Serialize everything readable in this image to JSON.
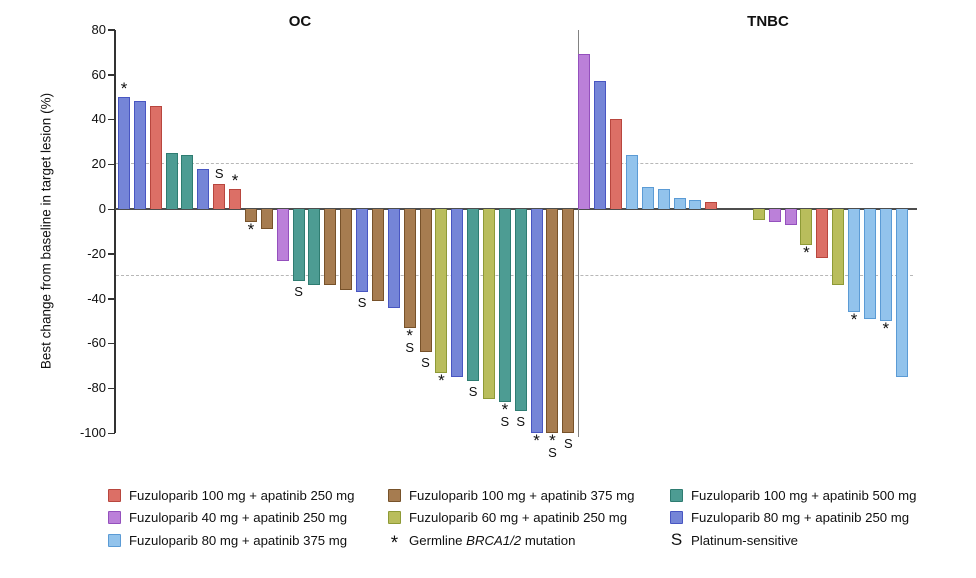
{
  "y_axis_title": "Best change from baseline in target lesion (%)",
  "colors": {
    "f100a250": {
      "fill": "#dc6f66",
      "border": "#b8463e",
      "label": "Fuzuloparib 100 mg + apatinib 250 mg"
    },
    "f40a250": {
      "fill": "#bb80d9",
      "border": "#9450bd",
      "label": "Fuzuloparib 40 mg + apatinib 250 mg"
    },
    "f80a375": {
      "fill": "#92c3ec",
      "border": "#5b9bd5",
      "label": "Fuzuloparib 80 mg + apatinib 375 mg"
    },
    "f100a375": {
      "fill": "#a67c50",
      "border": "#77522a",
      "label": "Fuzuloparib 100 mg + apatinib 375 mg"
    },
    "f60a250": {
      "fill": "#b9bd5c",
      "border": "#8e9a36",
      "label": "Fuzuloparib 60 mg + apatinib 250 mg"
    },
    "f100a500": {
      "fill": "#4d9c93",
      "border": "#2e7c71",
      "label": "Fuzuloparib 100 mg + apatinib 500 mg"
    },
    "f80a250": {
      "fill": "#7585d7",
      "border": "#4856c2",
      "label": "Fuzuloparib 80 mg + apatinib 250 mg"
    }
  },
  "chart_data": {
    "type": "bar",
    "ylabel": "Best change from baseline in target lesion (%)",
    "ylim": [
      -100,
      80
    ],
    "yticks": [
      80,
      60,
      40,
      20,
      0,
      -20,
      -40,
      -60,
      -80,
      -100
    ],
    "reference_lines": [
      20,
      -30
    ],
    "flag_legend": {
      "*": "Germline BRCA1/2 mutation",
      "S": "Platinum-sensitive"
    },
    "groups": [
      {
        "name": "OC",
        "bars": [
          {
            "v": 50,
            "c": "f80a250",
            "f": "*"
          },
          {
            "v": 48,
            "c": "f80a250",
            "f": ""
          },
          {
            "v": 46,
            "c": "f100a250",
            "f": ""
          },
          {
            "v": 25,
            "c": "f100a500",
            "f": ""
          },
          {
            "v": 24,
            "c": "f100a500",
            "f": ""
          },
          {
            "v": 18,
            "c": "f80a250",
            "f": ""
          },
          {
            "v": 11,
            "c": "f100a250",
            "f": "S"
          },
          {
            "v": 9,
            "c": "f100a250",
            "f": "*"
          },
          {
            "v": -6,
            "c": "f100a375",
            "f": "*"
          },
          {
            "v": -9,
            "c": "f100a375",
            "f": ""
          },
          {
            "v": -23,
            "c": "f40a250",
            "f": ""
          },
          {
            "v": -32,
            "c": "f100a500",
            "f": "S"
          },
          {
            "v": -34,
            "c": "f100a500",
            "f": ""
          },
          {
            "v": -34,
            "c": "f100a375",
            "f": ""
          },
          {
            "v": -36,
            "c": "f100a375",
            "f": ""
          },
          {
            "v": -37,
            "c": "f80a250",
            "f": "S"
          },
          {
            "v": -41,
            "c": "f100a375",
            "f": ""
          },
          {
            "v": -44,
            "c": "f80a250",
            "f": ""
          },
          {
            "v": -53,
            "c": "f100a375",
            "f": "*S"
          },
          {
            "v": -64,
            "c": "f100a375",
            "f": "S"
          },
          {
            "v": -73,
            "c": "f60a250",
            "f": "*"
          },
          {
            "v": -75,
            "c": "f80a250",
            "f": ""
          },
          {
            "v": -77,
            "c": "f100a500",
            "f": "S"
          },
          {
            "v": -85,
            "c": "f60a250",
            "f": ""
          },
          {
            "v": -86,
            "c": "f100a500",
            "f": "*S"
          },
          {
            "v": -90,
            "c": "f100a500",
            "f": "S"
          },
          {
            "v": -100,
            "c": "f80a250",
            "f": "*"
          },
          {
            "v": -100,
            "c": "f100a375",
            "f": "*S"
          },
          {
            "v": -100,
            "c": "f100a375",
            "f": "S"
          }
        ]
      },
      {
        "name": "TNBC",
        "bars": [
          {
            "v": 69,
            "c": "f40a250",
            "f": "",
            "s": 0
          },
          {
            "v": 57,
            "c": "f80a250",
            "f": "",
            "s": 1
          },
          {
            "v": 40,
            "c": "f100a250",
            "f": "",
            "s": 2
          },
          {
            "v": 24,
            "c": "f80a375",
            "f": "",
            "s": 3
          },
          {
            "v": 10,
            "c": "f80a375",
            "f": "",
            "s": 4
          },
          {
            "v": 9,
            "c": "f80a375",
            "f": "",
            "s": 5
          },
          {
            "v": 5,
            "c": "f80a375",
            "f": "",
            "s": 6
          },
          {
            "v": 4,
            "c": "f80a375",
            "f": "",
            "s": 7
          },
          {
            "v": 3,
            "c": "f100a250",
            "f": "",
            "s": 8
          },
          {
            "v": -5,
            "c": "f60a250",
            "f": "",
            "s": 11
          },
          {
            "v": -6,
            "c": "f40a250",
            "f": "",
            "s": 12
          },
          {
            "v": -7,
            "c": "f40a250",
            "f": "",
            "s": 13
          },
          {
            "v": -16,
            "c": "f60a250",
            "f": "*",
            "s": 14
          },
          {
            "v": -22,
            "c": "f100a250",
            "f": "",
            "s": 15
          },
          {
            "v": -34,
            "c": "f60a250",
            "f": "",
            "s": 16
          },
          {
            "v": -46,
            "c": "f80a375",
            "f": "*",
            "s": 17
          },
          {
            "v": -49,
            "c": "f80a375",
            "f": "",
            "s": 18
          },
          {
            "v": -50,
            "c": "f80a375",
            "f": "*",
            "s": 19
          },
          {
            "v": -75,
            "c": "f80a375",
            "f": "",
            "s": 20
          }
        ]
      }
    ]
  },
  "legend": {
    "columns": [
      {
        "items": [
          {
            "kind": "swatch",
            "color": "f100a250",
            "parts": [
              {
                "text": "Fuzuloparib 100 mg + apatinib 250 mg"
              }
            ]
          },
          {
            "kind": "swatch",
            "color": "f40a250",
            "parts": [
              {
                "text": "Fuzuloparib 40 mg + apatinib 250 mg"
              }
            ]
          },
          {
            "kind": "swatch",
            "color": "f80a375",
            "parts": [
              {
                "text": "Fuzuloparib 80 mg + apatinib 375 mg"
              }
            ]
          }
        ]
      },
      {
        "items": [
          {
            "kind": "swatch",
            "color": "f100a375",
            "parts": [
              {
                "text": "Fuzuloparib 100 mg + apatinib 375 mg"
              }
            ]
          },
          {
            "kind": "swatch",
            "color": "f60a250",
            "parts": [
              {
                "text": "Fuzuloparib 60 mg + apatinib 250 mg"
              }
            ]
          },
          {
            "kind": "symbol",
            "symbol": "*",
            "parts": [
              {
                "text": "Germline "
              },
              {
                "text": "BRCA1/2",
                "italic": true
              },
              {
                "text": " mutation"
              }
            ]
          }
        ]
      },
      {
        "items": [
          {
            "kind": "swatch",
            "color": "f100a500",
            "parts": [
              {
                "text": "Fuzuloparib 100 mg + apatinib 500 mg"
              }
            ]
          },
          {
            "kind": "swatch",
            "color": "f80a250",
            "parts": [
              {
                "text": "Fuzuloparib 80 mg + apatinib 250 mg"
              }
            ]
          },
          {
            "kind": "symbol",
            "symbol": "S",
            "parts": [
              {
                "text": "Platinum-sensitive"
              }
            ]
          }
        ]
      }
    ]
  }
}
